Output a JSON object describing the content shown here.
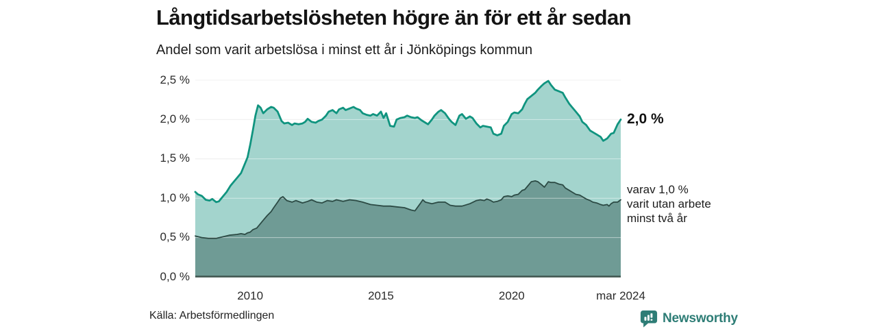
{
  "header": {
    "title": "Långtidsarbetslösheten högre än för ett år sedan",
    "subtitle": "Andel som varit arbetslösa i minst ett år i Jönköpings kommun"
  },
  "annotations": {
    "top_value": "2,0 %",
    "varav_lines": [
      "varav 1,0 %",
      "varit utan arbete",
      "minst två år"
    ]
  },
  "footer": {
    "source": "Källa: Arbetsförmedlingen",
    "brand": "Newsworthy"
  },
  "colors": {
    "line_total": "#10947f",
    "fill_total": "#a3d4cd",
    "line_two_years": "#2c4a44",
    "fill_two_years": "#6f9b95",
    "gridline": "#e3e3e3",
    "baseline": "#3f554f",
    "brand_teal": "#2e7d76"
  },
  "chart_data": {
    "type": "area",
    "title": "Långtidsarbetslösheten högre än för ett år sedan",
    "subtitle": "Andel som varit arbetslösa i minst ett år i Jönköpings kommun",
    "ylabel": "",
    "xlabel": "",
    "ylim": [
      0,
      2.5
    ],
    "xlim": [
      2007.9,
      2024.17
    ],
    "grid": true,
    "legend_position": "right-annotations",
    "y_ticks": [
      {
        "label": "0,0 %",
        "value": 0.0
      },
      {
        "label": "0,5 %",
        "value": 0.5
      },
      {
        "label": "1,0 %",
        "value": 1.0
      },
      {
        "label": "1,5 %",
        "value": 1.5
      },
      {
        "label": "2,0 %",
        "value": 2.0
      },
      {
        "label": "2,5 %",
        "value": 2.5
      }
    ],
    "x_ticks": [
      {
        "label": "2010",
        "year": 2010
      },
      {
        "label": "2015",
        "year": 2015
      },
      {
        "label": "2020",
        "year": 2020
      },
      {
        "label": "mar 2024",
        "year": 2024.17
      }
    ],
    "series": [
      {
        "name": "Andel arbetslösa minst ett år",
        "end_label": "2,0 %",
        "stroke": "#10947f",
        "fill": "#a3d4cd",
        "stroke_width": 2.8,
        "points": [
          [
            2007.9,
            1.08
          ],
          [
            2008.0,
            1.05
          ],
          [
            2008.15,
            1.03
          ],
          [
            2008.3,
            0.98
          ],
          [
            2008.45,
            0.97
          ],
          [
            2008.55,
            0.99
          ],
          [
            2008.7,
            0.95
          ],
          [
            2008.8,
            0.96
          ],
          [
            2008.95,
            1.02
          ],
          [
            2009.1,
            1.08
          ],
          [
            2009.25,
            1.16
          ],
          [
            2009.4,
            1.22
          ],
          [
            2009.5,
            1.26
          ],
          [
            2009.65,
            1.32
          ],
          [
            2009.75,
            1.4
          ],
          [
            2009.9,
            1.52
          ],
          [
            2010.0,
            1.68
          ],
          [
            2010.1,
            1.86
          ],
          [
            2010.2,
            2.05
          ],
          [
            2010.3,
            2.18
          ],
          [
            2010.4,
            2.15
          ],
          [
            2010.5,
            2.08
          ],
          [
            2010.65,
            2.13
          ],
          [
            2010.8,
            2.16
          ],
          [
            2010.9,
            2.15
          ],
          [
            2011.05,
            2.1
          ],
          [
            2011.2,
            1.98
          ],
          [
            2011.3,
            1.95
          ],
          [
            2011.45,
            1.96
          ],
          [
            2011.6,
            1.93
          ],
          [
            2011.7,
            1.95
          ],
          [
            2011.85,
            1.94
          ],
          [
            2012.0,
            1.95
          ],
          [
            2012.1,
            1.97
          ],
          [
            2012.2,
            2.01
          ],
          [
            2012.35,
            1.97
          ],
          [
            2012.5,
            1.96
          ],
          [
            2012.6,
            1.98
          ],
          [
            2012.75,
            2.0
          ],
          [
            2012.9,
            2.05
          ],
          [
            2013.0,
            2.1
          ],
          [
            2013.15,
            2.12
          ],
          [
            2013.3,
            2.08
          ],
          [
            2013.4,
            2.13
          ],
          [
            2013.55,
            2.15
          ],
          [
            2013.65,
            2.12
          ],
          [
            2013.8,
            2.14
          ],
          [
            2013.95,
            2.16
          ],
          [
            2014.05,
            2.14
          ],
          [
            2014.2,
            2.12
          ],
          [
            2014.3,
            2.08
          ],
          [
            2014.45,
            2.06
          ],
          [
            2014.6,
            2.05
          ],
          [
            2014.7,
            2.07
          ],
          [
            2014.85,
            2.05
          ],
          [
            2015.0,
            2.1
          ],
          [
            2015.1,
            2.02
          ],
          [
            2015.2,
            2.08
          ],
          [
            2015.35,
            1.92
          ],
          [
            2015.5,
            1.91
          ],
          [
            2015.6,
            2.0
          ],
          [
            2015.75,
            2.02
          ],
          [
            2015.9,
            2.03
          ],
          [
            2016.0,
            2.05
          ],
          [
            2016.15,
            2.03
          ],
          [
            2016.3,
            2.02
          ],
          [
            2016.4,
            2.03
          ],
          [
            2016.55,
            1.99
          ],
          [
            2016.7,
            1.96
          ],
          [
            2016.8,
            1.94
          ],
          [
            2016.95,
            2.0
          ],
          [
            2017.05,
            2.05
          ],
          [
            2017.2,
            2.1
          ],
          [
            2017.3,
            2.12
          ],
          [
            2017.45,
            2.08
          ],
          [
            2017.6,
            2.01
          ],
          [
            2017.7,
            1.97
          ],
          [
            2017.85,
            1.93
          ],
          [
            2018.0,
            2.05
          ],
          [
            2018.1,
            2.07
          ],
          [
            2018.25,
            2.01
          ],
          [
            2018.4,
            2.04
          ],
          [
            2018.5,
            2.02
          ],
          [
            2018.65,
            1.95
          ],
          [
            2018.8,
            1.9
          ],
          [
            2018.9,
            1.92
          ],
          [
            2019.05,
            1.91
          ],
          [
            2019.2,
            1.9
          ],
          [
            2019.3,
            1.82
          ],
          [
            2019.45,
            1.8
          ],
          [
            2019.6,
            1.82
          ],
          [
            2019.7,
            1.92
          ],
          [
            2019.85,
            1.97
          ],
          [
            2020.0,
            2.07
          ],
          [
            2020.1,
            2.09
          ],
          [
            2020.25,
            2.08
          ],
          [
            2020.4,
            2.13
          ],
          [
            2020.5,
            2.2
          ],
          [
            2020.6,
            2.26
          ],
          [
            2020.75,
            2.3
          ],
          [
            2020.9,
            2.34
          ],
          [
            2021.0,
            2.38
          ],
          [
            2021.15,
            2.43
          ],
          [
            2021.25,
            2.46
          ],
          [
            2021.4,
            2.49
          ],
          [
            2021.5,
            2.44
          ],
          [
            2021.65,
            2.38
          ],
          [
            2021.8,
            2.36
          ],
          [
            2021.95,
            2.34
          ],
          [
            2022.05,
            2.28
          ],
          [
            2022.2,
            2.2
          ],
          [
            2022.3,
            2.16
          ],
          [
            2022.45,
            2.1
          ],
          [
            2022.6,
            2.04
          ],
          [
            2022.7,
            1.97
          ],
          [
            2022.85,
            1.93
          ],
          [
            2023.0,
            1.86
          ],
          [
            2023.1,
            1.84
          ],
          [
            2023.25,
            1.81
          ],
          [
            2023.4,
            1.78
          ],
          [
            2023.5,
            1.73
          ],
          [
            2023.65,
            1.76
          ],
          [
            2023.8,
            1.82
          ],
          [
            2023.9,
            1.83
          ],
          [
            2024.05,
            1.94
          ],
          [
            2024.17,
            2.0
          ]
        ]
      },
      {
        "name": "varav varit utan arbete minst två år",
        "end_label": "varav 1,0 % varit utan arbete minst två år",
        "stroke": "#2c4a44",
        "fill": "#6f9b95",
        "stroke_width": 1.8,
        "points": [
          [
            2007.9,
            0.52
          ],
          [
            2008.15,
            0.5
          ],
          [
            2008.4,
            0.49
          ],
          [
            2008.7,
            0.49
          ],
          [
            2008.95,
            0.51
          ],
          [
            2009.2,
            0.53
          ],
          [
            2009.5,
            0.54
          ],
          [
            2009.65,
            0.55
          ],
          [
            2009.8,
            0.54
          ],
          [
            2009.9,
            0.56
          ],
          [
            2010.0,
            0.57
          ],
          [
            2010.1,
            0.6
          ],
          [
            2010.25,
            0.62
          ],
          [
            2010.4,
            0.68
          ],
          [
            2010.5,
            0.72
          ],
          [
            2010.65,
            0.78
          ],
          [
            2010.8,
            0.83
          ],
          [
            2010.9,
            0.88
          ],
          [
            2011.05,
            0.95
          ],
          [
            2011.15,
            1.0
          ],
          [
            2011.25,
            1.02
          ],
          [
            2011.4,
            0.97
          ],
          [
            2011.6,
            0.95
          ],
          [
            2011.75,
            0.97
          ],
          [
            2012.0,
            0.94
          ],
          [
            2012.2,
            0.96
          ],
          [
            2012.35,
            0.98
          ],
          [
            2012.55,
            0.95
          ],
          [
            2012.75,
            0.94
          ],
          [
            2012.95,
            0.97
          ],
          [
            2013.15,
            0.96
          ],
          [
            2013.3,
            0.98
          ],
          [
            2013.55,
            0.96
          ],
          [
            2013.8,
            0.98
          ],
          [
            2014.05,
            0.97
          ],
          [
            2014.3,
            0.95
          ],
          [
            2014.6,
            0.92
          ],
          [
            2014.85,
            0.91
          ],
          [
            2015.1,
            0.9
          ],
          [
            2015.35,
            0.9
          ],
          [
            2015.6,
            0.89
          ],
          [
            2015.9,
            0.88
          ],
          [
            2016.15,
            0.85
          ],
          [
            2016.3,
            0.84
          ],
          [
            2016.5,
            0.93
          ],
          [
            2016.6,
            0.98
          ],
          [
            2016.7,
            0.95
          ],
          [
            2016.95,
            0.93
          ],
          [
            2017.2,
            0.95
          ],
          [
            2017.45,
            0.95
          ],
          [
            2017.65,
            0.91
          ],
          [
            2017.85,
            0.9
          ],
          [
            2018.1,
            0.9
          ],
          [
            2018.4,
            0.93
          ],
          [
            2018.65,
            0.97
          ],
          [
            2018.8,
            0.98
          ],
          [
            2018.95,
            0.97
          ],
          [
            2019.05,
            0.99
          ],
          [
            2019.2,
            0.97
          ],
          [
            2019.3,
            0.95
          ],
          [
            2019.45,
            0.96
          ],
          [
            2019.6,
            0.98
          ],
          [
            2019.7,
            1.02
          ],
          [
            2019.85,
            1.03
          ],
          [
            2020.0,
            1.02
          ],
          [
            2020.1,
            1.04
          ],
          [
            2020.25,
            1.05
          ],
          [
            2020.4,
            1.1
          ],
          [
            2020.5,
            1.11
          ],
          [
            2020.6,
            1.15
          ],
          [
            2020.75,
            1.21
          ],
          [
            2020.9,
            1.22
          ],
          [
            2021.0,
            1.21
          ],
          [
            2021.15,
            1.17
          ],
          [
            2021.25,
            1.14
          ],
          [
            2021.4,
            1.21
          ],
          [
            2021.5,
            1.2
          ],
          [
            2021.65,
            1.2
          ],
          [
            2021.8,
            1.18
          ],
          [
            2021.95,
            1.17
          ],
          [
            2022.05,
            1.13
          ],
          [
            2022.2,
            1.1
          ],
          [
            2022.3,
            1.08
          ],
          [
            2022.45,
            1.05
          ],
          [
            2022.6,
            1.04
          ],
          [
            2022.7,
            1.02
          ],
          [
            2022.85,
            0.99
          ],
          [
            2023.0,
            0.97
          ],
          [
            2023.1,
            0.95
          ],
          [
            2023.25,
            0.94
          ],
          [
            2023.4,
            0.92
          ],
          [
            2023.5,
            0.91
          ],
          [
            2023.65,
            0.92
          ],
          [
            2023.72,
            0.9
          ],
          [
            2023.8,
            0.93
          ],
          [
            2023.9,
            0.95
          ],
          [
            2024.05,
            0.95
          ],
          [
            2024.17,
            0.98
          ]
        ]
      }
    ]
  }
}
